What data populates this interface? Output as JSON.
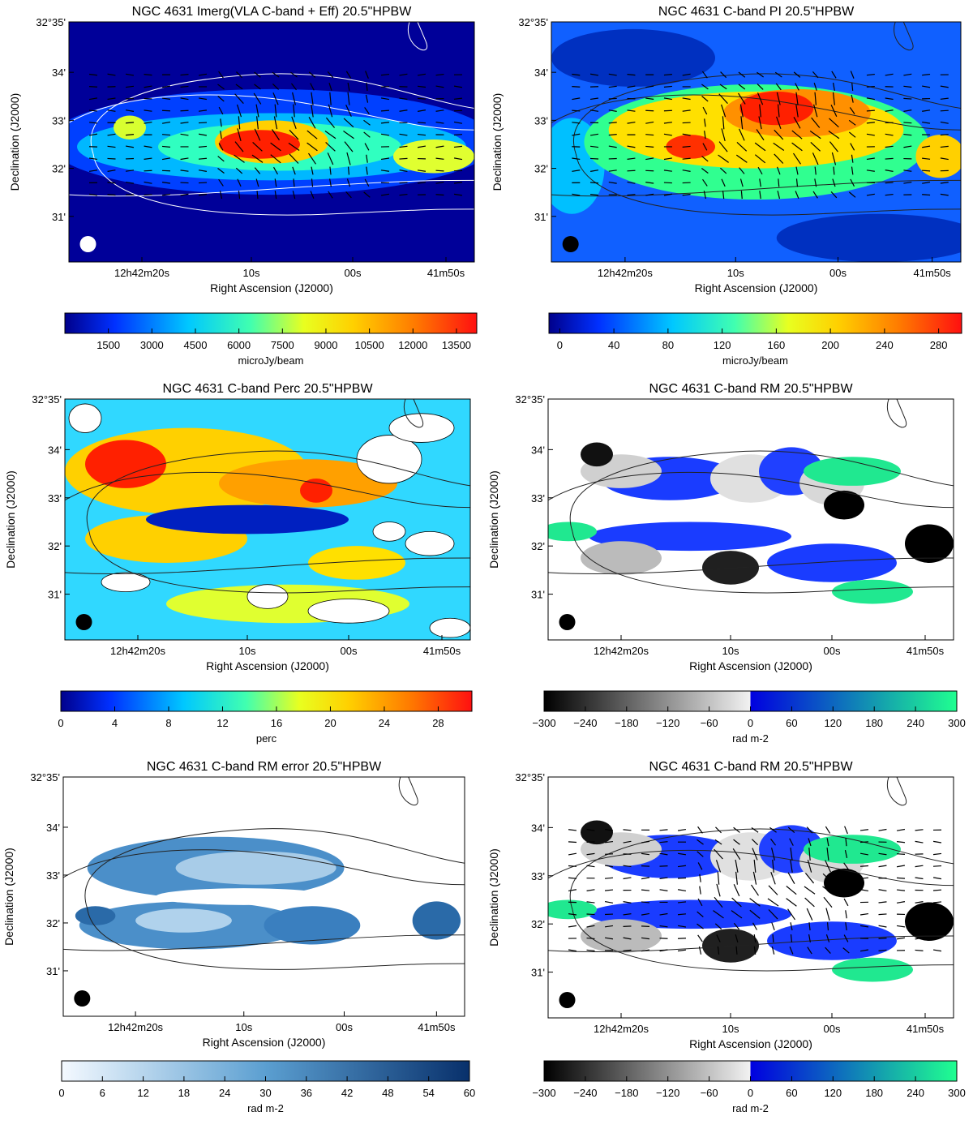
{
  "common": {
    "xlabel": "Right Ascension (J2000)",
    "ylabel": "Declination (J2000)",
    "xticks": [
      "12h42m20s",
      "10s",
      "00s",
      "41m50s"
    ],
    "yticks": [
      "32°35'",
      "34'",
      "33'",
      "32'",
      "31'"
    ]
  },
  "panels": [
    {
      "title": "NGC 4631   Imerg(VLA C-band + Eff)   20.5\"HPBW",
      "colormap": "jet",
      "colorbar": {
        "label": "microJy/beam",
        "ticks": [
          "1500",
          "3000",
          "4500",
          "6000",
          "7500",
          "9000",
          "10500",
          "12000",
          "13500"
        ]
      },
      "beam_color": "white",
      "vectors": true
    },
    {
      "title": "NGC 4631   C-band   PI   20.5\"HPBW",
      "colormap": "jet",
      "colorbar": {
        "label": "microJy/beam",
        "ticks": [
          "0",
          "40",
          "80",
          "120",
          "160",
          "200",
          "240",
          "280"
        ]
      },
      "beam_color": "black",
      "vectors": true
    },
    {
      "title": "NGC 4631   C-band   Perc   20.5\"HPBW",
      "colormap": "jet",
      "colorbar": {
        "label": "perc",
        "ticks": [
          "0",
          "4",
          "8",
          "12",
          "16",
          "20",
          "24",
          "28"
        ]
      },
      "beam_color": "black",
      "vectors": false
    },
    {
      "title": "NGC 4631   C-band   RM   20.5\"HPBW",
      "colormap": "rm",
      "colorbar": {
        "label": "rad m-2",
        "ticks": [
          "−300",
          "−240",
          "−180",
          "−120",
          "−60",
          "0",
          "60",
          "120",
          "180",
          "240",
          "300"
        ]
      },
      "beam_color": "black",
      "vectors": false
    },
    {
      "title": "NGC 4631   C-band   RM error   20.5\"HPBW",
      "colormap": "blues",
      "colorbar": {
        "label": "rad m-2",
        "ticks": [
          "0",
          "6",
          "12",
          "18",
          "24",
          "30",
          "36",
          "42",
          "48",
          "54",
          "60"
        ]
      },
      "beam_color": "black",
      "vectors": false
    },
    {
      "title": "NGC 4631   C-band   RM   20.5\"HPBW",
      "colormap": "rm",
      "colorbar": {
        "label": "rad m-2",
        "ticks": [
          "−300",
          "−240",
          "−180",
          "−120",
          "−60",
          "0",
          "60",
          "120",
          "180",
          "240",
          "300"
        ]
      },
      "beam_color": "black",
      "vectors": true
    }
  ]
}
